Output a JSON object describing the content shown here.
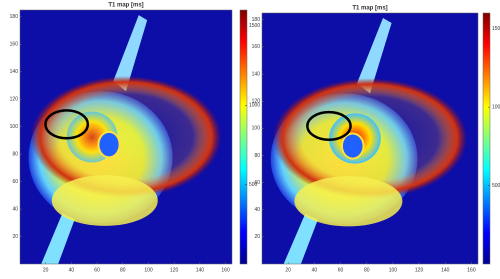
{
  "chart_data": [
    {
      "type": "image",
      "title": "T1 map [ms]",
      "xlim": [
        0,
        165
      ],
      "xticks": [
        20,
        40,
        60,
        80,
        100,
        120,
        140,
        160
      ],
      "ylim": [
        0,
        185
      ],
      "yticks": [
        20,
        40,
        60,
        80,
        100,
        120,
        140,
        160,
        180
      ],
      "clim": [
        0,
        1600
      ],
      "cticks": [
        500,
        1000,
        1500
      ]
    },
    {
      "type": "image",
      "title": "T1 map [ms]",
      "xlim": [
        0,
        165
      ],
      "xticks": [
        20,
        40,
        60,
        80,
        100,
        120,
        140,
        160
      ],
      "ylim": [
        0,
        185
      ],
      "yticks": [
        20,
        40,
        60,
        80,
        100,
        120,
        140,
        160,
        180
      ],
      "clim": [
        0,
        1600
      ],
      "cticks": [
        500,
        1000,
        1500
      ]
    }
  ]
}
